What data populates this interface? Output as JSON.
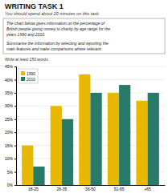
{
  "chart_data": {
    "type": "bar",
    "title": "WRITING TASK 1",
    "subtitle": "You should spend about 20 minutes on this task.",
    "annotations": [
      "The chart below gives information on the percentage of",
      "British people giving money to charity by age range for the",
      "years 1990 and 2010.",
      "Summarise the information by selecting and reporting the",
      "main features and make comparisons where relevant.",
      "Write at least 150 words."
    ],
    "categories": [
      "18-25",
      "26-35",
      "36-50",
      "51-65",
      "+65"
    ],
    "series": [
      {
        "name": "1990",
        "color": "#e8b800",
        "values": [
          15,
          30,
          42,
          35,
          32
        ]
      },
      {
        "name": "2010",
        "color": "#2a7a6a",
        "values": [
          7,
          25,
          35,
          38,
          35
        ]
      }
    ],
    "ylim": [
      0,
      45
    ],
    "yticks": [
      {
        "value": 0,
        "label": "0%"
      },
      {
        "value": 5,
        "label": "5%"
      },
      {
        "value": 10,
        "label": "10%"
      },
      {
        "value": 15,
        "label": "15%"
      },
      {
        "value": 20,
        "label": "20%"
      },
      {
        "value": 25,
        "label": "25%"
      },
      {
        "value": 30,
        "label": "30%"
      },
      {
        "value": 35,
        "label": "35%"
      },
      {
        "value": 40,
        "label": "40%"
      },
      {
        "value": 45,
        "label": "45%"
      }
    ],
    "grid": true,
    "legend": "upper left"
  }
}
